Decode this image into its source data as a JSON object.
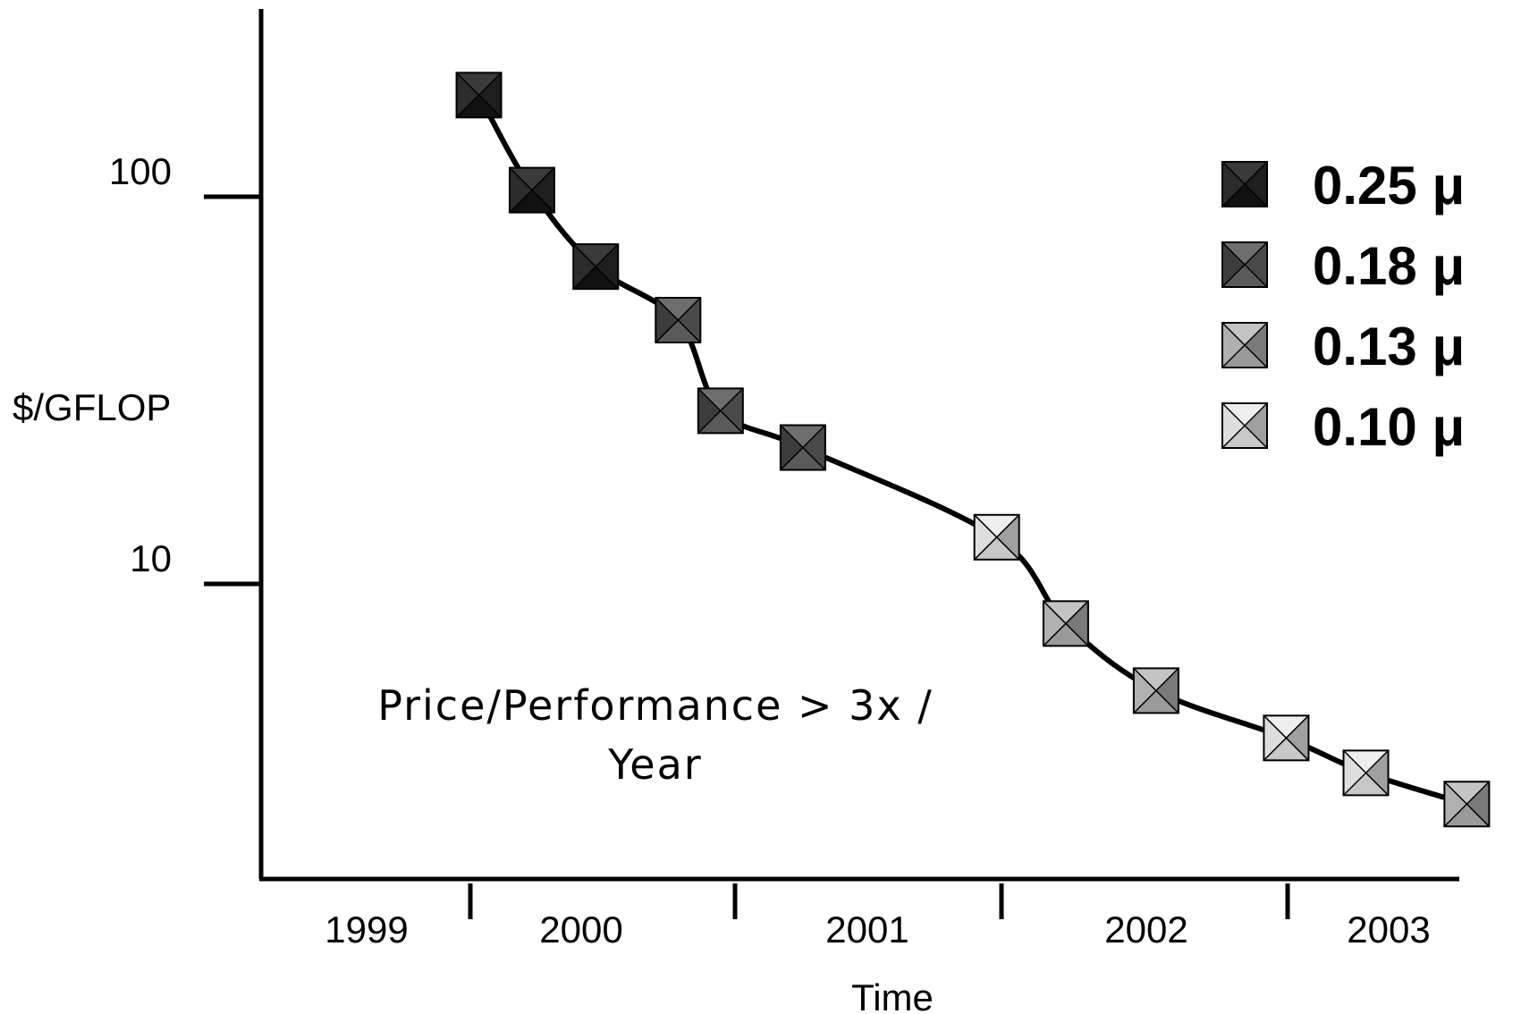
{
  "chart_data": {
    "type": "line",
    "title": "",
    "xlabel": "Time",
    "ylabel": "$/GFLOP",
    "yscale": "log",
    "ylim": [
      2.2,
      250
    ],
    "y_ticks": [
      {
        "value": 100,
        "label": "100"
      },
      {
        "value": 10,
        "label": "10"
      }
    ],
    "x_categories": [
      "1999",
      "2000",
      "2001",
      "2002",
      "2003"
    ],
    "annotation": {
      "lines": [
        "Price/Performance > 3x /",
        "Year"
      ]
    },
    "legend": {
      "position": "top-right",
      "entries": [
        {
          "name": "0.25 μ",
          "colors": {
            "top": "#3a3a3a",
            "right": "#1e1e1e",
            "bottom": "#111111",
            "left": "#2c2c2c"
          }
        },
        {
          "name": "0.18 μ",
          "colors": {
            "top": "#6e6e6e",
            "right": "#4a4a4a",
            "bottom": "#5a5a5a",
            "left": "#3c3c3c"
          }
        },
        {
          "name": "0.13 μ",
          "colors": {
            "top": "#c4c4c4",
            "right": "#7a7a7a",
            "bottom": "#9a9a9a",
            "left": "#b0b0b0"
          }
        },
        {
          "name": "0.10 μ",
          "colors": {
            "top": "#eeeeee",
            "right": "#a0a0a0",
            "bottom": "#c8c8c8",
            "left": "#dedede"
          }
        }
      ]
    },
    "series": [
      {
        "points": [
          {
            "x": 0.82,
            "y": 183,
            "node": "0.25 μ"
          },
          {
            "x": 1.02,
            "y": 104,
            "node": "0.25 μ"
          },
          {
            "x": 1.26,
            "y": 66,
            "node": "0.25 μ"
          },
          {
            "x": 1.57,
            "y": 48,
            "node": "0.18 μ"
          },
          {
            "x": 1.73,
            "y": 28,
            "node": "0.18 μ"
          },
          {
            "x": 2.04,
            "y": 22.5,
            "node": "0.18 μ"
          },
          {
            "x": 2.77,
            "y": 13.2,
            "node": "0.10 μ"
          },
          {
            "x": 3.03,
            "y": 7.9,
            "node": "0.13 μ"
          },
          {
            "x": 3.37,
            "y": 5.3,
            "node": "0.13 μ"
          },
          {
            "x": 3.86,
            "y": 4.0,
            "node": "0.10 μ"
          },
          {
            "x": 4.16,
            "y": 3.25,
            "node": "0.10 μ"
          },
          {
            "x": 4.54,
            "y": 2.7,
            "node": "0.13 μ"
          }
        ]
      }
    ]
  }
}
